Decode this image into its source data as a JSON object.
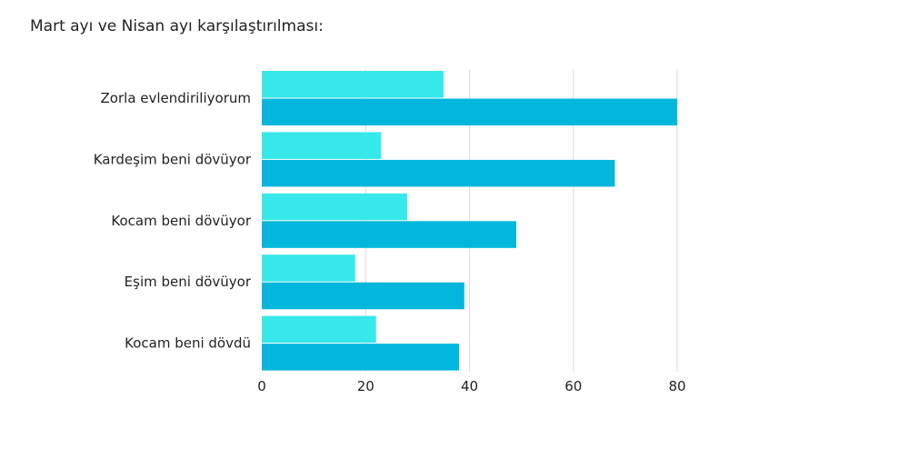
{
  "title": "Mart ayı ve Nisan ayı karşılaştırılması:",
  "colors": {
    "series_a": "#37e8ea",
    "series_b": "#03b7dc",
    "grid": "#dcdcdc",
    "text": "#222222"
  },
  "chart_data": {
    "type": "bar",
    "orientation": "horizontal",
    "title": "Mart ayı ve Nisan ayı karşılaştırılması:",
    "categories": [
      "Zorla evlendiriliyorum",
      "Kardeşim beni dövüyor",
      "Kocam beni dövüyor",
      "Eşim beni dövüyor",
      "Kocam beni dövdü"
    ],
    "series": [
      {
        "values": [
          35,
          23,
          28,
          18,
          22
        ],
        "color": "#37e8ea"
      },
      {
        "values": [
          80,
          68,
          49,
          39,
          38
        ],
        "color": "#03b7dc"
      }
    ],
    "xlim": [
      0,
      80
    ],
    "xticks": [
      0,
      20,
      40,
      60,
      80
    ],
    "grid": true,
    "legend": "none"
  }
}
